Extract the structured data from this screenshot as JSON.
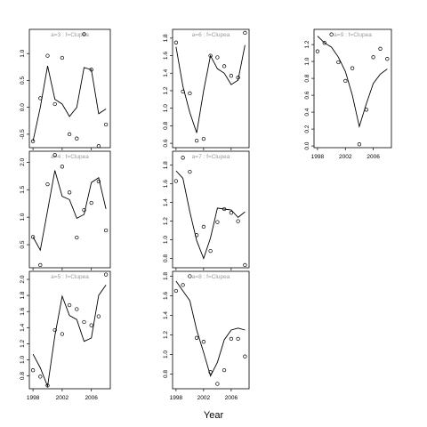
{
  "chart_data": {
    "type": "scatter",
    "xlabel": "Year",
    "x_ticks": [
      1998,
      2002,
      2006
    ],
    "panels": [
      {
        "label": "a=3 : f=Clupea",
        "ylim": [
          -0.75,
          1.45
        ],
        "y_ticks": [
          -0.5,
          0.0,
          0.5,
          1.0
        ],
        "x_tick_labels_shown": false,
        "points": {
          "x": [
            1998,
            1999,
            2000,
            2001,
            2002,
            2003,
            2004,
            2005,
            2006,
            2007,
            2008
          ],
          "y": [
            -0.63,
            0.17,
            0.96,
            0.06,
            0.92,
            -0.5,
            -0.58,
            1.36,
            0.7,
            -0.72,
            -0.32
          ]
        },
        "line": {
          "x": [
            1998,
            1999,
            2000,
            2001,
            2002,
            2003,
            2004,
            2005,
            2006,
            2007,
            2008
          ],
          "y": [
            -0.63,
            0.0,
            0.77,
            0.15,
            0.06,
            -0.17,
            0.0,
            0.74,
            0.7,
            -0.12,
            -0.03
          ]
        }
      },
      {
        "label": "a=4 : f=Clupea",
        "ylim": [
          0.08,
          2.2
        ],
        "y_ticks": [
          0.5,
          1.0,
          1.5,
          2.0
        ],
        "x_tick_labels_shown": false,
        "points": {
          "x": [
            1998,
            1999,
            2000,
            2001,
            2002,
            2003,
            2004,
            2005,
            2006,
            2007,
            2008
          ],
          "y": [
            0.64,
            0.13,
            1.6,
            2.13,
            1.92,
            1.45,
            0.63,
            1.13,
            1.26,
            1.65,
            0.76
          ]
        },
        "line": {
          "x": [
            1998,
            1999,
            2000,
            2001,
            2002,
            2003,
            2004,
            2005,
            2006,
            2007,
            2008
          ],
          "y": [
            0.64,
            0.4,
            1.12,
            1.85,
            1.38,
            1.32,
            0.98,
            1.05,
            1.63,
            1.72,
            1.15
          ]
        }
      },
      {
        "label": "a=5 : f=Clupea",
        "ylim": [
          0.64,
          2.1
        ],
        "y_ticks": [
          0.8,
          1.0,
          1.2,
          1.4,
          1.6,
          1.8,
          2.0
        ],
        "x_tick_labels_shown": true,
        "points": {
          "x": [
            1998,
            1999,
            2000,
            2001,
            2002,
            2003,
            2004,
            2005,
            2006,
            2007,
            2008
          ],
          "y": [
            0.87,
            0.79,
            0.68,
            1.37,
            1.32,
            1.68,
            1.63,
            1.47,
            1.43,
            1.54,
            2.06
          ]
        },
        "line": {
          "x": [
            1998,
            1999,
            2000,
            2001,
            2002,
            2003,
            2004,
            2005,
            2006,
            2007,
            2008
          ],
          "y": [
            1.07,
            0.9,
            0.67,
            1.3,
            1.79,
            1.55,
            1.5,
            1.23,
            1.27,
            1.8,
            1.93
          ]
        }
      },
      {
        "label": "a=6 : f=Clupea",
        "ylim": [
          0.55,
          1.9
        ],
        "y_ticks": [
          0.6,
          0.8,
          1.0,
          1.2,
          1.4,
          1.6,
          1.8
        ],
        "x_tick_labels_shown": false,
        "points": {
          "x": [
            1998,
            1999,
            2000,
            2001,
            2002,
            2003,
            2004,
            2005,
            2006,
            2007,
            2008
          ],
          "y": [
            1.75,
            1.19,
            1.17,
            0.63,
            0.65,
            1.6,
            1.58,
            1.48,
            1.37,
            1.35,
            1.86
          ]
        },
        "line": {
          "x": [
            1998,
            1999,
            2000,
            2001,
            2002,
            2003,
            2004,
            2005,
            2006,
            2007,
            2008
          ],
          "y": [
            1.7,
            1.25,
            0.95,
            0.72,
            1.2,
            1.6,
            1.45,
            1.4,
            1.27,
            1.32,
            1.72
          ]
        }
      },
      {
        "label": "a=7 : f=Clupea",
        "ylim": [
          0.7,
          1.95
        ],
        "y_ticks": [
          0.8,
          1.0,
          1.2,
          1.4,
          1.6,
          1.8
        ],
        "x_tick_labels_shown": false,
        "points": {
          "x": [
            1998,
            1999,
            2000,
            2001,
            2002,
            2003,
            2004,
            2005,
            2006,
            2007,
            2008
          ],
          "y": [
            1.63,
            1.88,
            1.73,
            1.05,
            1.14,
            0.88,
            1.19,
            1.33,
            1.29,
            1.2,
            0.73
          ]
        },
        "line": {
          "x": [
            1998,
            1999,
            2000,
            2001,
            2002,
            2003,
            2004,
            2005,
            2006,
            2007,
            2008
          ],
          "y": [
            1.74,
            1.66,
            1.3,
            0.99,
            0.8,
            1.02,
            1.34,
            1.33,
            1.32,
            1.24,
            1.3
          ]
        }
      },
      {
        "label": "a=8 : f=Clupea",
        "ylim": [
          0.65,
          1.85
        ],
        "y_ticks": [
          0.8,
          1.0,
          1.2,
          1.4,
          1.6,
          1.8
        ],
        "x_tick_labels_shown": true,
        "points": {
          "x": [
            1998,
            1999,
            2000,
            2001,
            2002,
            2003,
            2004,
            2005,
            2006,
            2007,
            2008
          ],
          "y": [
            1.65,
            1.71,
            1.8,
            1.17,
            1.13,
            0.82,
            0.7,
            0.84,
            1.16,
            1.16,
            0.98
          ]
        },
        "line": {
          "x": [
            1998,
            1999,
            2000,
            2001,
            2002,
            2003,
            2004,
            2005,
            2006,
            2007,
            2008
          ],
          "y": [
            1.75,
            1.65,
            1.55,
            1.25,
            1.02,
            0.78,
            0.92,
            1.15,
            1.25,
            1.27,
            1.25
          ]
        }
      },
      {
        "label": "a=9 : f=Clupea",
        "ylim": [
          -0.02,
          1.38
        ],
        "y_ticks": [
          0.0,
          0.2,
          0.4,
          0.6,
          0.8,
          1.0,
          1.2
        ],
        "x_tick_labels_shown": true,
        "points": {
          "x": [
            1998,
            1999,
            2000,
            2001,
            2002,
            2003,
            2004,
            2005,
            2006,
            2007,
            2008
          ],
          "y": [
            1.12,
            1.22,
            1.32,
            0.99,
            0.77,
            0.92,
            0.02,
            0.43,
            1.05,
            1.15,
            1.03
          ]
        },
        "line": {
          "x": [
            1998,
            1999,
            2000,
            2001,
            2002,
            2003,
            2004,
            2005,
            2006,
            2007,
            2008
          ],
          "y": [
            1.3,
            1.22,
            1.17,
            1.05,
            0.88,
            0.6,
            0.23,
            0.5,
            0.74,
            0.85,
            0.91
          ]
        }
      }
    ]
  }
}
